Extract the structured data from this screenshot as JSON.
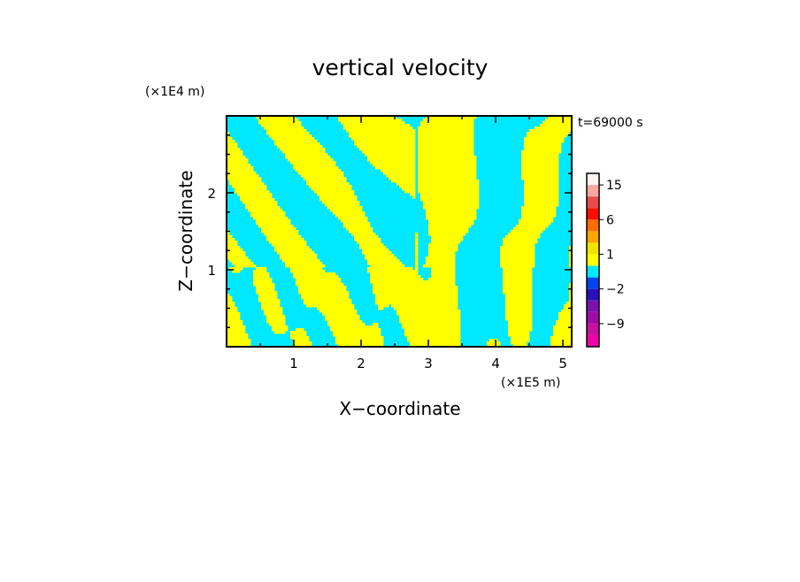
{
  "chart_data": {
    "type": "heatmap",
    "title": "vertical velocity",
    "xlabel": "X−coordinate",
    "ylabel": "Z−coordinate",
    "x_scale_note": "(×1E5 m)",
    "y_scale_note": "(×1E4 m)",
    "time_label": "t=69000 s",
    "xlim": [
      0,
      5.13
    ],
    "ylim": [
      0,
      3.0
    ],
    "x_ticks": [
      {
        "value": 1,
        "label": "1"
      },
      {
        "value": 2,
        "label": "2"
      },
      {
        "value": 3,
        "label": "3"
      },
      {
        "value": 4,
        "label": "4"
      },
      {
        "value": 5,
        "label": "5"
      }
    ],
    "y_ticks": [
      {
        "value": 1,
        "label": "1"
      },
      {
        "value": 2,
        "label": "2"
      }
    ],
    "colorbar": {
      "levels": [
        -15,
        -12,
        -9,
        -6,
        -4,
        -2,
        -1,
        0,
        1,
        2,
        4,
        6,
        9,
        12,
        15,
        20
      ],
      "colors": [
        "#ee00aa",
        "#c8119e",
        "#a00aa8",
        "#7c11b0",
        "#2a10b8",
        "#0044ee",
        "#00e8ff",
        "#ffff00",
        "#f2e200",
        "#ffa500",
        "#ff6d00",
        "#ff0d00",
        "#e84b4b",
        "#f8a8a0",
        "#fff3ef"
      ],
      "labels": [
        {
          "value": 15,
          "label": "15"
        },
        {
          "value": 6,
          "label": "6"
        },
        {
          "value": 1,
          "label": "1"
        },
        {
          "value": -2,
          "label": "−2"
        },
        {
          "value": -9,
          "label": "−9"
        }
      ]
    },
    "field_colors": {
      "positive": "#ffff00",
      "negative": "#00e8ff"
    }
  }
}
